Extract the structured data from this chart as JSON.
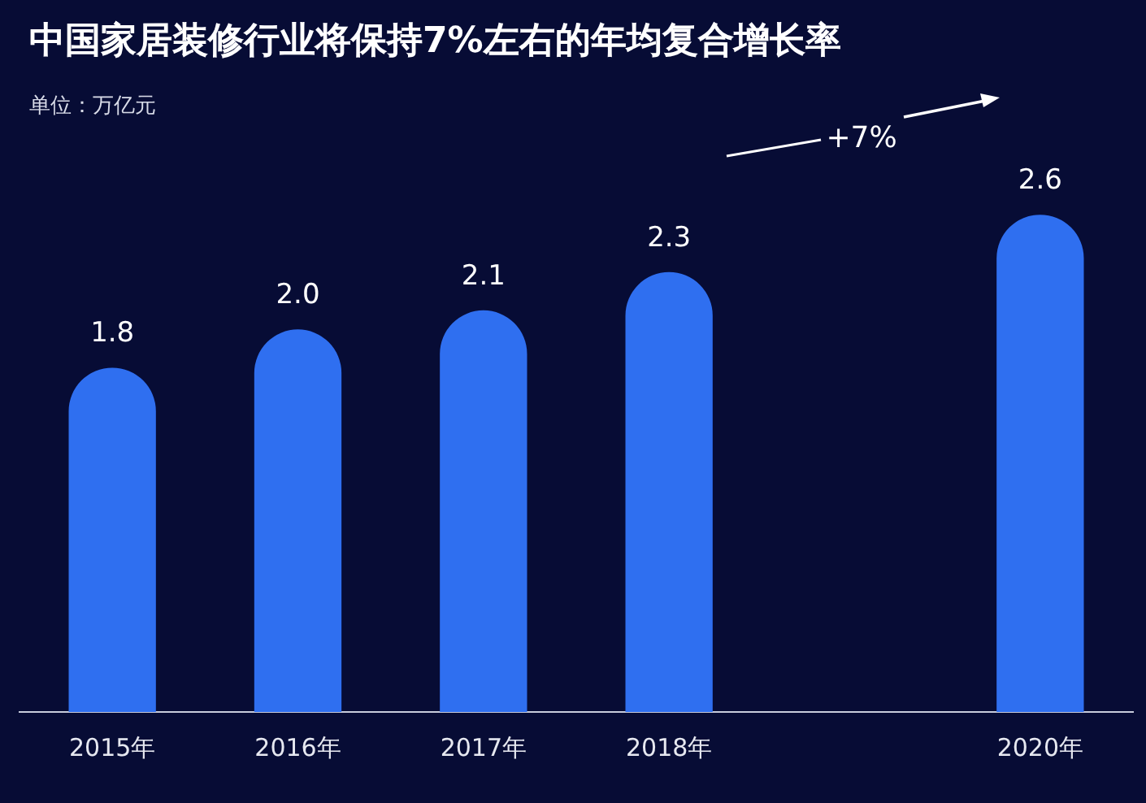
{
  "chart_data": {
    "type": "bar",
    "title": "中国家居装修行业将保持7%左右的年均复合增长率",
    "subtitle": "单位：万亿元",
    "categories": [
      "2015年",
      "2016年",
      "2017年",
      "2018年",
      null,
      "2020年"
    ],
    "values": [
      1.8,
      2.0,
      2.1,
      2.3,
      null,
      2.6
    ],
    "color": "#2f6ff0",
    "value_labels": [
      "1.8",
      "2.0",
      "2.1",
      "2.3",
      null,
      "2.6"
    ],
    "grid": false,
    "legend": false,
    "annotations": [
      "+7%"
    ]
  }
}
